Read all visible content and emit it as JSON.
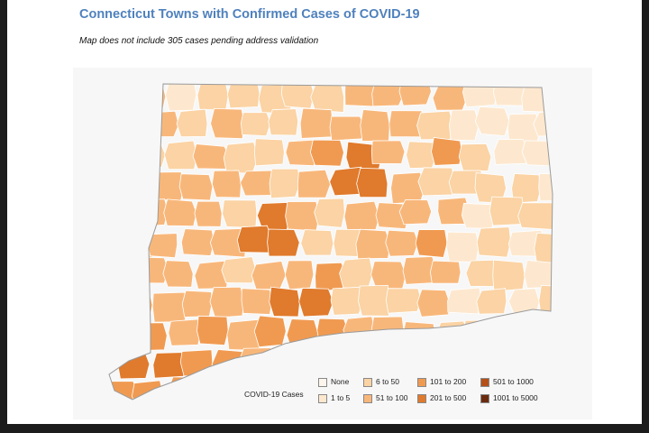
{
  "title": "Connecticut Towns with Confirmed Cases of COVID-19",
  "subtitle": "Map does not include 305 cases pending address validation",
  "legend": {
    "title": "COVID-19 Cases",
    "items": [
      {
        "label": "None",
        "color": "#fdf6ec"
      },
      {
        "label": "1 to 5",
        "color": "#fde8cf"
      },
      {
        "label": "6 to 50",
        "color": "#fbd3a4"
      },
      {
        "label": "51 to 100",
        "color": "#f8b77a"
      },
      {
        "label": "101 to 200",
        "color": "#f09a51"
      },
      {
        "label": "201 to 500",
        "color": "#e07a2c"
      },
      {
        "label": "501 to 1000",
        "color": "#b44f18"
      },
      {
        "label": "1001 to 5000",
        "color": "#6b2b0f"
      }
    ]
  }
}
